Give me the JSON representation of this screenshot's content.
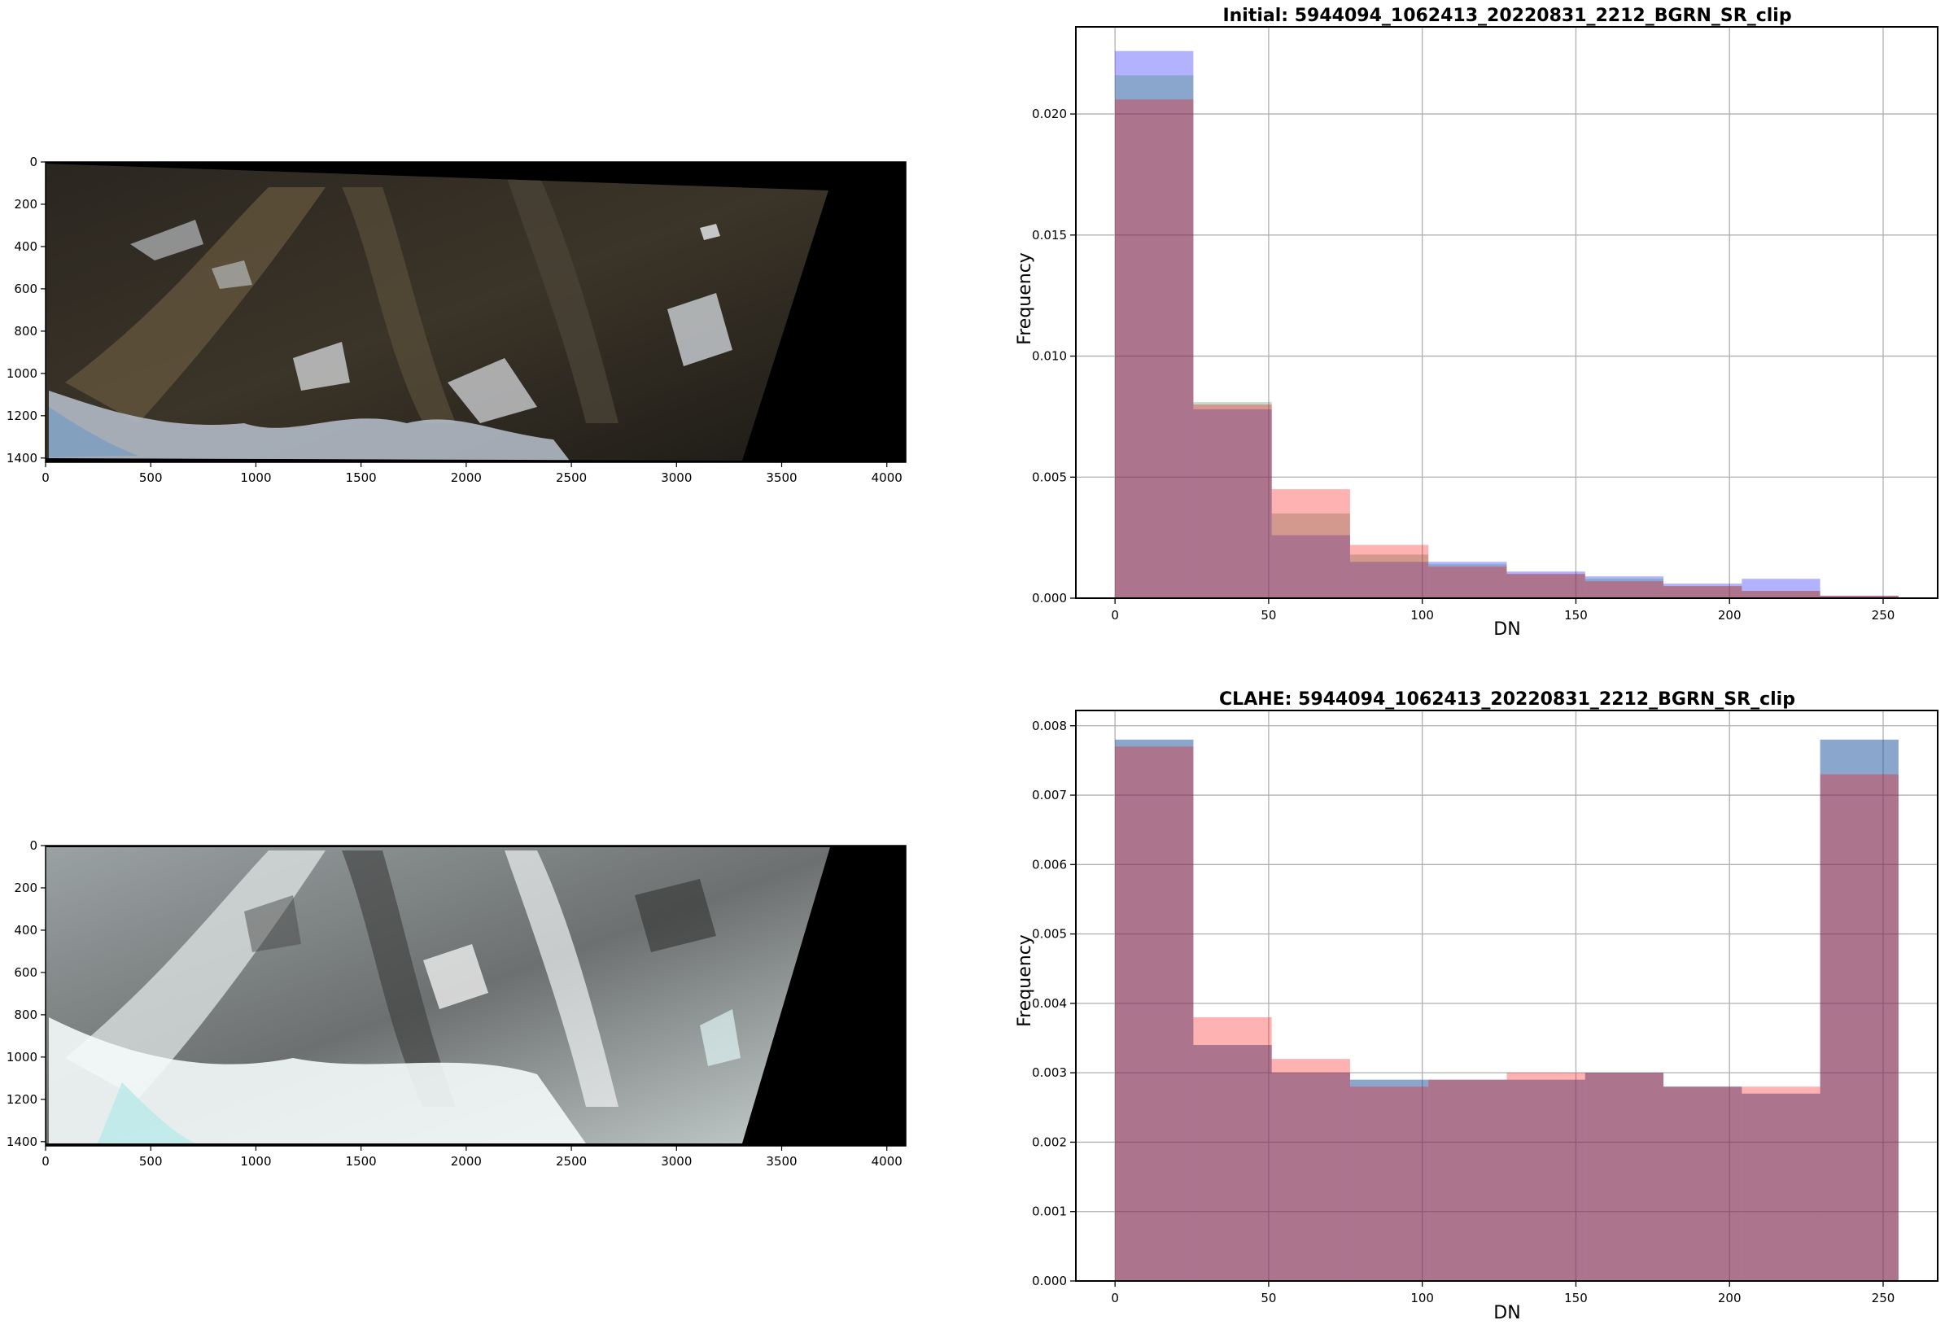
{
  "panels": {
    "image_top": {
      "x_ticks": [
        "0",
        "500",
        "1000",
        "1500",
        "2000",
        "2500",
        "3000",
        "3500",
        "4000"
      ],
      "y_ticks": [
        "0",
        "200",
        "400",
        "600",
        "800",
        "1000",
        "1200",
        "1400"
      ]
    },
    "image_bottom": {
      "x_ticks": [
        "0",
        "500",
        "1000",
        "1500",
        "2000",
        "2500",
        "3000",
        "3500",
        "4000"
      ],
      "y_ticks": [
        "0",
        "200",
        "400",
        "600",
        "800",
        "1000",
        "1200",
        "1400"
      ]
    }
  },
  "colors": {
    "blue_series": "#0000ff",
    "green_series": "#2e8b57",
    "red_series": "#ff0000",
    "series_opacity": 0.3,
    "grid": "#b0b0b0",
    "axes": "#000000",
    "image_background": "#000000"
  },
  "chart_data": [
    {
      "type": "bar",
      "title": "Initial: 5944094_1062413_20220831_2212_BGRN_SR_clip",
      "xlabel": "DN",
      "ylabel": "Frequency",
      "xlim": [
        -12.75,
        267.75
      ],
      "ylim": [
        0,
        0.0236
      ],
      "grid": true,
      "bin_edges": [
        0,
        25.5,
        51,
        76.5,
        102,
        127.5,
        153,
        178.5,
        204,
        229.5,
        255
      ],
      "x_ticks": [
        "0",
        "50",
        "100",
        "150",
        "200",
        "250"
      ],
      "x_tick_values": [
        0,
        50,
        100,
        150,
        200,
        250
      ],
      "y_ticks": [
        "0.000",
        "0.005",
        "0.010",
        "0.015",
        "0.020"
      ],
      "y_tick_values": [
        0,
        0.005,
        0.01,
        0.015,
        0.02
      ],
      "series": [
        {
          "color": "#0000ff",
          "values": [
            0.0226,
            0.0078,
            0.0026,
            0.0015,
            0.0015,
            0.0011,
            0.0009,
            0.0006,
            0.0008,
            0.0001
          ]
        },
        {
          "color": "#2e8b57",
          "values": [
            0.0216,
            0.0081,
            0.0035,
            0.0018,
            0.0014,
            0.001,
            0.0008,
            0.0005,
            0.0003,
            0.0001
          ]
        },
        {
          "color": "#ff0000",
          "values": [
            0.0206,
            0.008,
            0.0045,
            0.0022,
            0.0013,
            0.001,
            0.0007,
            0.0005,
            0.0003,
            0.0001
          ]
        }
      ]
    },
    {
      "type": "bar",
      "title": "CLAHE: 5944094_1062413_20220831_2212_BGRN_SR_clip",
      "xlabel": "DN",
      "ylabel": "Frequency",
      "xlim": [
        -12.75,
        267.75
      ],
      "ylim": [
        0,
        0.00822
      ],
      "grid": true,
      "bin_edges": [
        0,
        25.5,
        51,
        76.5,
        102,
        127.5,
        153,
        178.5,
        204,
        229.5,
        255
      ],
      "x_ticks": [
        "0",
        "50",
        "100",
        "150",
        "200",
        "250"
      ],
      "x_tick_values": [
        0,
        50,
        100,
        150,
        200,
        250
      ],
      "y_ticks": [
        "0.000",
        "0.001",
        "0.002",
        "0.003",
        "0.004",
        "0.005",
        "0.006",
        "0.007",
        "0.008"
      ],
      "y_tick_values": [
        0,
        0.001,
        0.002,
        0.003,
        0.004,
        0.005,
        0.006,
        0.007,
        0.008
      ],
      "series": [
        {
          "color": "#0000ff",
          "values": [
            0.0078,
            0.0034,
            0.003,
            0.0029,
            0.0029,
            0.0029,
            0.003,
            0.0028,
            0.0027,
            0.0078
          ]
        },
        {
          "color": "#2e8b57",
          "values": [
            0.0078,
            0.0034,
            0.003,
            0.0029,
            0.0029,
            0.0029,
            0.003,
            0.0028,
            0.0027,
            0.0078
          ]
        },
        {
          "color": "#ff0000",
          "values": [
            0.0077,
            0.0038,
            0.0032,
            0.0028,
            0.0029,
            0.003,
            0.003,
            0.0028,
            0.0028,
            0.0073
          ]
        }
      ]
    }
  ]
}
